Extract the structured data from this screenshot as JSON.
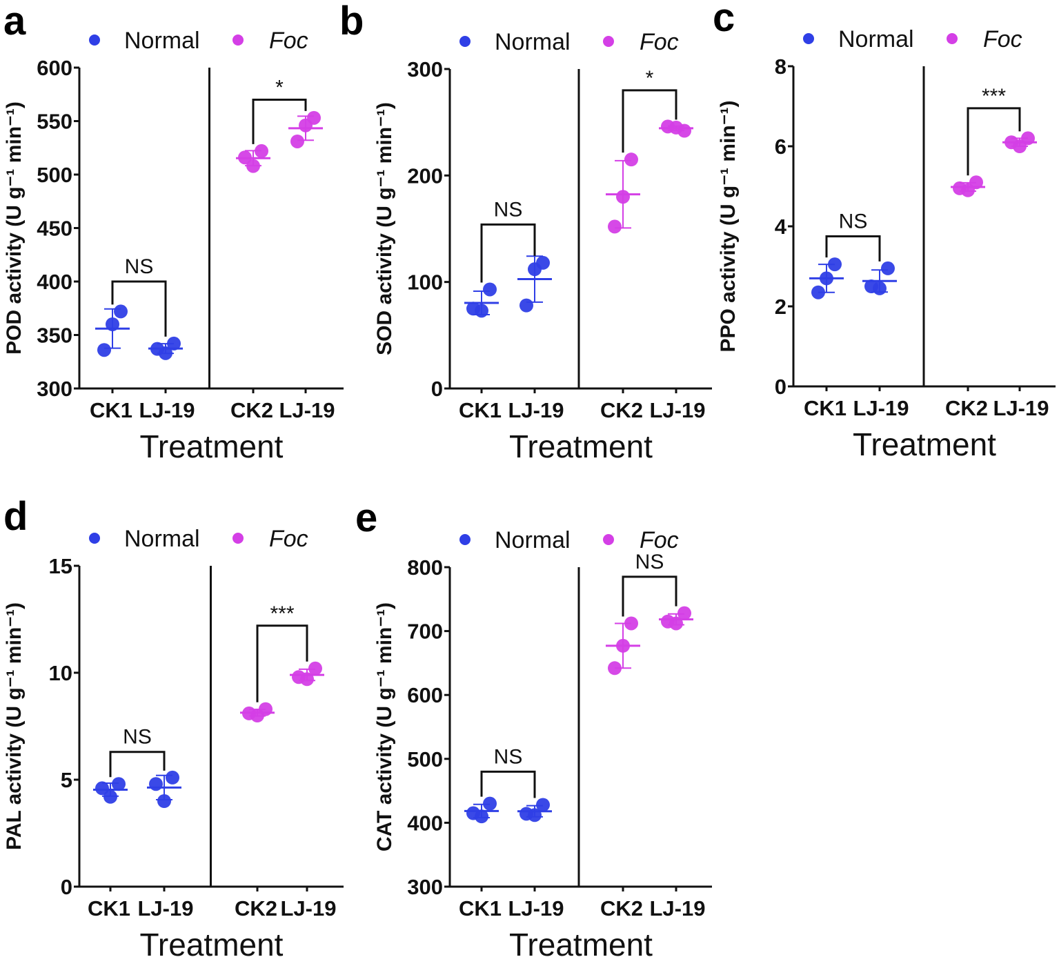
{
  "colors": {
    "normal": "#2f3fe6",
    "foc": "#d43fe6",
    "axis": "#111111"
  },
  "legend": {
    "normal": "Normal",
    "foc": "Foc"
  },
  "chart_data": [
    {
      "type": "scatter",
      "panel": "a",
      "ylabel": "POD activity (U g⁻¹ min⁻¹)",
      "xlabel": "Treatment",
      "ylim": [
        300,
        600
      ],
      "yticks": [
        300,
        350,
        400,
        450,
        500,
        550,
        600
      ],
      "categories": [
        "CK1",
        "LJ-19",
        "CK2",
        "LJ-19"
      ],
      "groups": [
        "Normal",
        "Normal",
        "Foc",
        "Foc"
      ],
      "points": [
        [
          372,
          360,
          336
        ],
        [
          342,
          333,
          337
        ],
        [
          522,
          508,
          516
        ],
        [
          553,
          546,
          531
        ]
      ],
      "comparisons": [
        {
          "label": "NS",
          "pair": [
            0,
            1
          ],
          "level": 400
        },
        {
          "label": "*",
          "pair": [
            2,
            3
          ],
          "level": 570
        }
      ]
    },
    {
      "type": "scatter",
      "panel": "b",
      "ylabel": "SOD activity (U g⁻¹ min⁻¹)",
      "xlabel": "Treatment",
      "ylim": [
        0,
        300
      ],
      "yticks": [
        0,
        100,
        200,
        300
      ],
      "categories": [
        "CK1",
        "LJ-19",
        "CK2",
        "LJ-19"
      ],
      "groups": [
        "Normal",
        "Normal",
        "Foc",
        "Foc"
      ],
      "points": [
        [
          93,
          73,
          75
        ],
        [
          118,
          112,
          78
        ],
        [
          215,
          180,
          152
        ],
        [
          242,
          245,
          246
        ]
      ],
      "comparisons": [
        {
          "label": "NS",
          "pair": [
            0,
            1
          ],
          "level": 154
        },
        {
          "label": "*",
          "pair": [
            2,
            3
          ],
          "level": 280
        }
      ]
    },
    {
      "type": "scatter",
      "panel": "c",
      "ylabel": "PPO activity (U g⁻¹ min⁻¹)",
      "xlabel": "Treatment",
      "ylim": [
        0,
        8
      ],
      "yticks": [
        0,
        2,
        4,
        6,
        8
      ],
      "categories": [
        "CK1",
        "LJ-19",
        "CK2",
        "LJ-19"
      ],
      "groups": [
        "Normal",
        "Normal",
        "Foc",
        "Foc"
      ],
      "points": [
        [
          3.05,
          2.7,
          2.35
        ],
        [
          2.95,
          2.45,
          2.5
        ],
        [
          5.1,
          4.9,
          4.95
        ],
        [
          6.2,
          6.0,
          6.1
        ]
      ],
      "comparisons": [
        {
          "label": "NS",
          "pair": [
            0,
            1
          ],
          "level": 3.75
        },
        {
          "label": "***",
          "pair": [
            2,
            3
          ],
          "level": 6.95
        }
      ]
    },
    {
      "type": "scatter",
      "panel": "d",
      "ylabel": "PAL activity (U g⁻¹ min⁻¹)",
      "xlabel": "Treatment",
      "ylim": [
        0,
        15
      ],
      "yticks": [
        0,
        5,
        10,
        15
      ],
      "categories": [
        "CK1",
        "LJ-19",
        "CK2",
        "LJ-19"
      ],
      "groups": [
        "Normal",
        "Normal",
        "Foc",
        "Foc"
      ],
      "points": [
        [
          4.8,
          4.2,
          4.6
        ],
        [
          5.1,
          4.0,
          4.8
        ],
        [
          8.3,
          8.0,
          8.1
        ],
        [
          10.2,
          9.7,
          9.8
        ]
      ],
      "comparisons": [
        {
          "label": "NS",
          "pair": [
            0,
            1
          ],
          "level": 6.3
        },
        {
          "label": "***",
          "pair": [
            2,
            3
          ],
          "level": 12.2
        }
      ]
    },
    {
      "type": "scatter",
      "panel": "e",
      "ylabel": "CAT activity (U g⁻¹ min⁻¹)",
      "xlabel": "Treatment",
      "ylim": [
        300,
        800
      ],
      "yticks": [
        300,
        400,
        500,
        600,
        700,
        800
      ],
      "categories": [
        "CK1",
        "LJ-19",
        "CK2",
        "LJ-19"
      ],
      "groups": [
        "Normal",
        "Normal",
        "Foc",
        "Foc"
      ],
      "points": [
        [
          430,
          410,
          415
        ],
        [
          428,
          412,
          414
        ],
        [
          712,
          677,
          642
        ],
        [
          728,
          712,
          715
        ]
      ],
      "comparisons": [
        {
          "label": "NS",
          "pair": [
            0,
            1
          ],
          "level": 480
        },
        {
          "label": "NS",
          "pair": [
            2,
            3
          ],
          "level": 785
        }
      ]
    }
  ]
}
